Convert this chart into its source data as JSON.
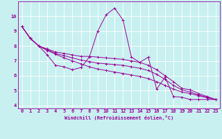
{
  "xlabel": "Windchill (Refroidissement éolien,°C)",
  "bg_color": "#c8f0f0",
  "line_color": "#990099",
  "grid_color": "#ffffff",
  "xlim": [
    -0.5,
    23.5
  ],
  "ylim": [
    3.8,
    11.0
  ],
  "yticks": [
    4,
    5,
    6,
    7,
    8,
    9,
    10
  ],
  "xticks": [
    0,
    1,
    2,
    3,
    4,
    5,
    6,
    7,
    8,
    9,
    10,
    11,
    12,
    13,
    14,
    15,
    16,
    17,
    18,
    19,
    20,
    21,
    22,
    23
  ],
  "lines": [
    {
      "x": [
        0,
        1,
        2,
        3,
        4,
        5,
        6,
        7,
        8,
        9,
        10,
        11,
        12,
        13,
        14,
        15,
        16,
        17,
        18,
        19,
        20,
        21,
        22,
        23
      ],
      "y": [
        9.3,
        8.5,
        8.0,
        7.4,
        6.7,
        6.6,
        6.4,
        6.55,
        7.25,
        9.0,
        10.1,
        10.55,
        9.75,
        7.25,
        6.9,
        7.25,
        5.1,
        5.9,
        4.6,
        4.55,
        4.4,
        4.4,
        4.4,
        4.4
      ]
    },
    {
      "x": [
        0,
        1,
        2,
        3,
        4,
        5,
        6,
        7,
        8,
        9,
        10,
        11,
        12,
        13,
        14,
        15,
        16,
        17,
        18,
        19,
        20,
        21,
        22,
        23
      ],
      "y": [
        9.3,
        8.5,
        8.0,
        7.8,
        7.6,
        7.5,
        7.4,
        7.3,
        7.3,
        7.25,
        7.2,
        7.15,
        7.1,
        7.0,
        6.9,
        6.7,
        6.4,
        6.0,
        5.6,
        5.15,
        5.05,
        4.8,
        4.6,
        4.4
      ]
    },
    {
      "x": [
        0,
        1,
        2,
        3,
        4,
        5,
        6,
        7,
        8,
        9,
        10,
        11,
        12,
        13,
        14,
        15,
        16,
        17,
        18,
        19,
        20,
        21,
        22,
        23
      ],
      "y": [
        9.3,
        8.5,
        8.0,
        7.75,
        7.5,
        7.35,
        7.2,
        7.05,
        6.95,
        6.85,
        6.8,
        6.75,
        6.7,
        6.6,
        6.5,
        6.35,
        6.1,
        5.75,
        5.35,
        5.05,
        4.9,
        4.7,
        4.55,
        4.4
      ]
    },
    {
      "x": [
        0,
        1,
        2,
        3,
        4,
        5,
        6,
        7,
        8,
        9,
        10,
        11,
        12,
        13,
        14,
        15,
        16,
        17,
        18,
        19,
        20,
        21,
        22,
        23
      ],
      "y": [
        9.3,
        8.5,
        8.0,
        7.7,
        7.45,
        7.2,
        7.0,
        6.8,
        6.6,
        6.45,
        6.35,
        6.25,
        6.15,
        6.05,
        5.95,
        5.8,
        5.6,
        5.35,
        5.1,
        4.9,
        4.8,
        4.65,
        4.52,
        4.4
      ]
    }
  ]
}
